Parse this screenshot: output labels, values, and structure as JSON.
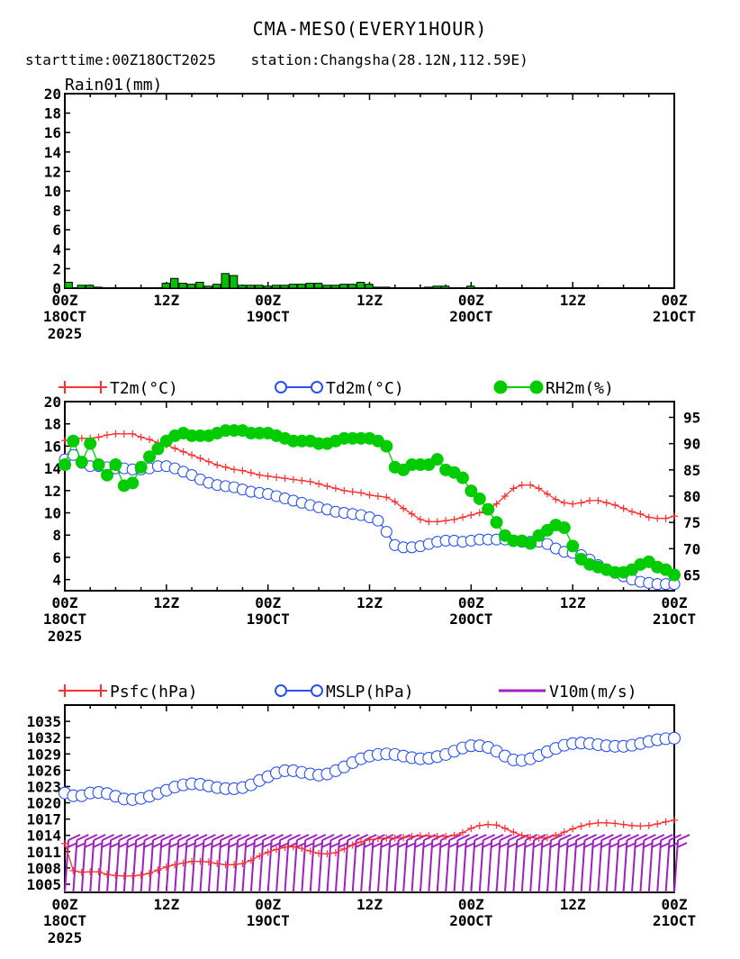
{
  "header": {
    "title": "CMA-MESO(EVERY1HOUR)",
    "subtitle_start": "starttime:00Z18OCT2025",
    "subtitle_station": "station:Changsha(28.12N,112.59E)"
  },
  "colors": {
    "rain_bar": "#00c000",
    "t2m": "#ff3030",
    "td2m": "#2a50f0",
    "rh2m": "#00cc00",
    "psfc": "#ff3030",
    "mslp": "#2a50f0",
    "wind": "#a020c0"
  },
  "x_axis": {
    "tick_labels": [
      {
        "hour": 0,
        "line1": "00Z",
        "line2": "18OCT",
        "line3": "2025"
      },
      {
        "hour": 12,
        "line1": "12Z",
        "line2": "",
        "line3": ""
      },
      {
        "hour": 24,
        "line1": "00Z",
        "line2": "19OCT",
        "line3": ""
      },
      {
        "hour": 36,
        "line1": "12Z",
        "line2": "",
        "line3": ""
      },
      {
        "hour": 48,
        "line1": "00Z",
        "line2": "20OCT",
        "line3": ""
      },
      {
        "hour": 60,
        "line1": "12Z",
        "line2": "",
        "line3": ""
      },
      {
        "hour": 72,
        "line1": "00Z",
        "line2": "21OCT",
        "line3": ""
      }
    ],
    "range": [
      0,
      72
    ]
  },
  "chart_data": [
    {
      "type": "bar",
      "title": "Rain01(mm)",
      "ylim": [
        0,
        20
      ],
      "yticks": [
        0,
        2,
        4,
        6,
        8,
        10,
        12,
        14,
        16,
        18,
        20
      ],
      "x": [
        0,
        1,
        2,
        3,
        4,
        5,
        6,
        7,
        8,
        9,
        10,
        11,
        12,
        13,
        14,
        15,
        16,
        17,
        18,
        19,
        20,
        21,
        22,
        23,
        24,
        25,
        26,
        27,
        28,
        29,
        30,
        31,
        32,
        33,
        34,
        35,
        36,
        37,
        38,
        39,
        40,
        41,
        42,
        43,
        44,
        45,
        46,
        47,
        48,
        49,
        50,
        51,
        52,
        53,
        54,
        55,
        56,
        57,
        58,
        59,
        60,
        61,
        62,
        63,
        64,
        65,
        66,
        67,
        68,
        69,
        70,
        71,
        72
      ],
      "values": [
        0.6,
        0,
        0.3,
        0.3,
        0.1,
        0,
        0,
        0,
        0,
        0,
        0,
        0,
        0.5,
        1.0,
        0.5,
        0.4,
        0.6,
        0.2,
        0.4,
        1.5,
        1.3,
        0.3,
        0.3,
        0.3,
        0.2,
        0.3,
        0.3,
        0.4,
        0.4,
        0.5,
        0.5,
        0.3,
        0.3,
        0.4,
        0.4,
        0.6,
        0.4,
        0.1,
        0.1,
        0,
        0,
        0,
        0,
        0.1,
        0.2,
        0.2,
        0,
        0,
        0.2,
        0,
        0,
        0,
        0,
        0,
        0,
        0,
        0,
        0,
        0,
        0,
        0,
        0,
        0,
        0,
        0,
        0,
        0,
        0,
        0,
        0,
        0,
        0,
        0
      ]
    },
    {
      "type": "line",
      "ylim": [
        3,
        20
      ],
      "yticks": [
        4,
        6,
        8,
        10,
        12,
        14,
        16,
        18,
        20
      ],
      "y2lim": [
        62,
        98
      ],
      "y2ticks": [
        65,
        70,
        75,
        80,
        85,
        90,
        95
      ],
      "x": [
        0,
        1,
        2,
        3,
        4,
        5,
        6,
        7,
        8,
        9,
        10,
        11,
        12,
        13,
        14,
        15,
        16,
        17,
        18,
        19,
        20,
        21,
        22,
        23,
        24,
        25,
        26,
        27,
        28,
        29,
        30,
        31,
        32,
        33,
        34,
        35,
        36,
        37,
        38,
        39,
        40,
        41,
        42,
        43,
        44,
        45,
        46,
        47,
        48,
        49,
        50,
        51,
        52,
        53,
        54,
        55,
        56,
        57,
        58,
        59,
        60,
        61,
        62,
        63,
        64,
        65,
        66,
        67,
        68,
        69,
        70,
        71,
        72
      ],
      "series": [
        {
          "name": "T2m(°C)",
          "axis": "left",
          "marker": "plus",
          "values": [
            16.5,
            16.7,
            16.7,
            16.7,
            16.8,
            17.0,
            17.1,
            17.1,
            17.1,
            16.8,
            16.6,
            16.3,
            16.1,
            15.8,
            15.5,
            15.2,
            14.9,
            14.6,
            14.3,
            14.1,
            13.9,
            13.8,
            13.6,
            13.4,
            13.3,
            13.2,
            13.1,
            13.0,
            12.9,
            12.8,
            12.6,
            12.4,
            12.2,
            12.0,
            11.9,
            11.8,
            11.6,
            11.5,
            11.4,
            11.0,
            10.4,
            9.9,
            9.4,
            9.2,
            9.2,
            9.3,
            9.4,
            9.6,
            9.8,
            10.0,
            10.3,
            10.8,
            11.5,
            12.2,
            12.5,
            12.5,
            12.2,
            11.7,
            11.2,
            10.9,
            10.8,
            10.9,
            11.1,
            11.1,
            10.9,
            10.7,
            10.4,
            10.1,
            9.9,
            9.6,
            9.5,
            9.5,
            9.7
          ]
        },
        {
          "name": "Td2m(°C)",
          "axis": "left",
          "marker": "circle",
          "values": [
            14.8,
            15.2,
            14.5,
            14.2,
            14.2,
            14.1,
            14.0,
            14.0,
            13.9,
            13.9,
            14.0,
            14.2,
            14.2,
            14.0,
            13.7,
            13.4,
            13.0,
            12.7,
            12.5,
            12.4,
            12.3,
            12.1,
            11.9,
            11.8,
            11.7,
            11.5,
            11.3,
            11.1,
            10.9,
            10.7,
            10.5,
            10.3,
            10.1,
            10.0,
            9.9,
            9.8,
            9.6,
            9.3,
            8.3,
            7.1,
            6.9,
            6.9,
            7.0,
            7.2,
            7.4,
            7.5,
            7.5,
            7.4,
            7.5,
            7.6,
            7.6,
            7.6,
            7.6,
            7.5,
            7.4,
            7.4,
            7.4,
            7.2,
            6.8,
            6.5,
            6.4,
            6.2,
            5.8,
            5.3,
            4.9,
            4.6,
            4.3,
            4.0,
            3.8,
            3.7,
            3.6,
            3.6,
            3.6
          ]
        },
        {
          "name": "RH2m(%)",
          "axis": "right",
          "marker": "filled-circle",
          "values": [
            86,
            90.5,
            86.5,
            90,
            86,
            84,
            86,
            82,
            82.5,
            85.5,
            87.5,
            89,
            90.5,
            91.5,
            92,
            91.5,
            91.5,
            91.5,
            92,
            92.5,
            92.5,
            92.5,
            92,
            92,
            92,
            91.5,
            91,
            90.5,
            90.5,
            90.5,
            90,
            90,
            90.5,
            91,
            91,
            91,
            91,
            90.5,
            89.5,
            85.5,
            85,
            86,
            86,
            86,
            87,
            85,
            84.5,
            83.5,
            81,
            79.5,
            77.5,
            75,
            72.5,
            71.5,
            71.5,
            71,
            72.5,
            73.5,
            74.5,
            74,
            70.5,
            68,
            67,
            66.5,
            66,
            65.5,
            65.5,
            66,
            67,
            67.5,
            66.5,
            66,
            65
          ]
        }
      ]
    },
    {
      "type": "line",
      "ylim": [
        1003.5,
        1038
      ],
      "yticks": [
        1005,
        1008,
        1011,
        1014,
        1017,
        1020,
        1023,
        1026,
        1029,
        1032,
        1035
      ],
      "x": [
        0,
        1,
        2,
        3,
        4,
        5,
        6,
        7,
        8,
        9,
        10,
        11,
        12,
        13,
        14,
        15,
        16,
        17,
        18,
        19,
        20,
        21,
        22,
        23,
        24,
        25,
        26,
        27,
        28,
        29,
        30,
        31,
        32,
        33,
        34,
        35,
        36,
        37,
        38,
        39,
        40,
        41,
        42,
        43,
        44,
        45,
        46,
        47,
        48,
        49,
        50,
        51,
        52,
        53,
        54,
        55,
        56,
        57,
        58,
        59,
        60,
        61,
        62,
        63,
        64,
        65,
        66,
        67,
        68,
        69,
        70,
        71,
        72
      ],
      "series": [
        {
          "name": "Psfc(hPa)",
          "marker": "plus",
          "values": [
            1012.5,
            1007.5,
            1007.2,
            1007.3,
            1007.3,
            1006.8,
            1006.6,
            1006.5,
            1006.5,
            1006.7,
            1007.0,
            1007.6,
            1008.2,
            1008.6,
            1008.9,
            1009.2,
            1009.2,
            1009.1,
            1008.8,
            1008.6,
            1008.6,
            1008.8,
            1009.4,
            1010.2,
            1010.9,
            1011.4,
            1011.8,
            1011.9,
            1011.6,
            1011.1,
            1010.7,
            1010.6,
            1010.8,
            1011.5,
            1012.2,
            1012.8,
            1013.2,
            1013.4,
            1013.5,
            1013.5,
            1013.6,
            1013.8,
            1013.9,
            1013.9,
            1013.8,
            1013.8,
            1014.0,
            1014.5,
            1015.3,
            1015.8,
            1016.0,
            1015.9,
            1015.3,
            1014.6,
            1014.0,
            1013.6,
            1013.5,
            1013.6,
            1014.0,
            1014.6,
            1015.2,
            1015.7,
            1016.1,
            1016.3,
            1016.3,
            1016.2,
            1016.0,
            1015.8,
            1015.7,
            1015.8,
            1016.1,
            1016.5,
            1016.8
          ]
        },
        {
          "name": "MSLP(hPa)",
          "marker": "circle",
          "values": [
            1021.8,
            1021.3,
            1021.3,
            1021.8,
            1021.9,
            1021.7,
            1021.2,
            1020.7,
            1020.6,
            1020.8,
            1021.2,
            1021.7,
            1022.3,
            1022.9,
            1023.3,
            1023.5,
            1023.4,
            1023.1,
            1022.8,
            1022.6,
            1022.6,
            1022.8,
            1023.3,
            1024.1,
            1024.8,
            1025.5,
            1025.9,
            1025.9,
            1025.6,
            1025.3,
            1025.1,
            1025.3,
            1025.9,
            1026.6,
            1027.4,
            1028.1,
            1028.6,
            1028.9,
            1029.0,
            1028.9,
            1028.6,
            1028.3,
            1028.1,
            1028.2,
            1028.5,
            1028.9,
            1029.5,
            1030.1,
            1030.5,
            1030.5,
            1030.2,
            1029.5,
            1028.6,
            1027.9,
            1027.8,
            1028.1,
            1028.7,
            1029.4,
            1030.0,
            1030.6,
            1030.9,
            1031.0,
            1030.9,
            1030.7,
            1030.5,
            1030.4,
            1030.4,
            1030.6,
            1030.9,
            1031.3,
            1031.6,
            1031.8,
            1031.9
          ]
        },
        {
          "name": "V10m(m/s)",
          "marker": "wind-barb"
        }
      ]
    }
  ]
}
